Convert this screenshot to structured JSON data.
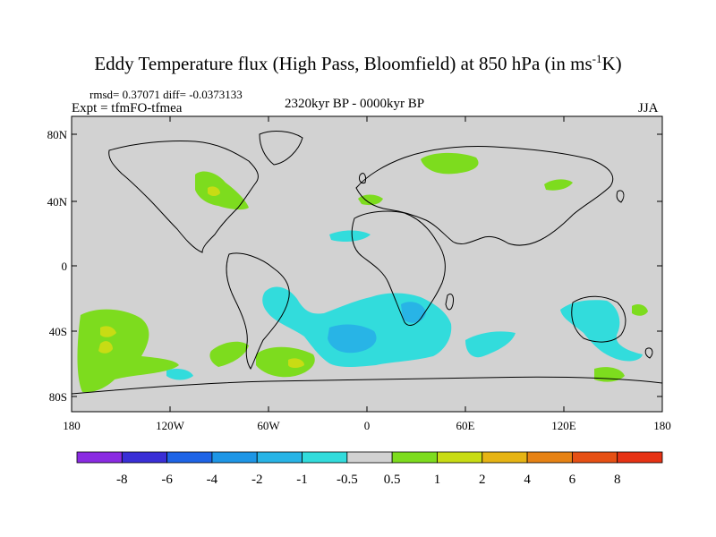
{
  "title": {
    "main": "Eddy Temperature flux (High Pass, Bloomfield) at 850 hPa (in ms",
    "sup": "-1",
    "end": "K)"
  },
  "stats": {
    "rmsd_text": "rmsd= 0.37071 diff= -0.0373133"
  },
  "experiment": "Expt = tfmFO-tfmea",
  "period": "2320kyr BP - 0000kyr BP",
  "season": "JJA",
  "axes": {
    "lat_ticks": [
      "80N",
      "40N",
      "0",
      "40S",
      "80S"
    ],
    "lon_ticks": [
      "180",
      "120W",
      "60W",
      "0",
      "60E",
      "120E",
      "180"
    ]
  },
  "colorbar": {
    "labels": [
      "-8",
      "-6",
      "-4",
      "-2",
      "-1",
      "-0.5",
      "0.5",
      "1",
      "2",
      "4",
      "6",
      "8"
    ],
    "colors": [
      "#8a2be2",
      "#3a2fd6",
      "#1e64e6",
      "#1e96e6",
      "#28b4e6",
      "#32dcdc",
      "#d2d2d2",
      "#7ddc1e",
      "#c8dc14",
      "#e6b414",
      "#e68214",
      "#e65014",
      "#e63214"
    ]
  },
  "colors": {
    "ocean_land_neutral": "#d2d2d2",
    "positive_weak": "#7ddc1e",
    "positive_mid": "#c8dc14",
    "negative_weak": "#32dcdc",
    "negative_mid": "#28b4e6"
  }
}
